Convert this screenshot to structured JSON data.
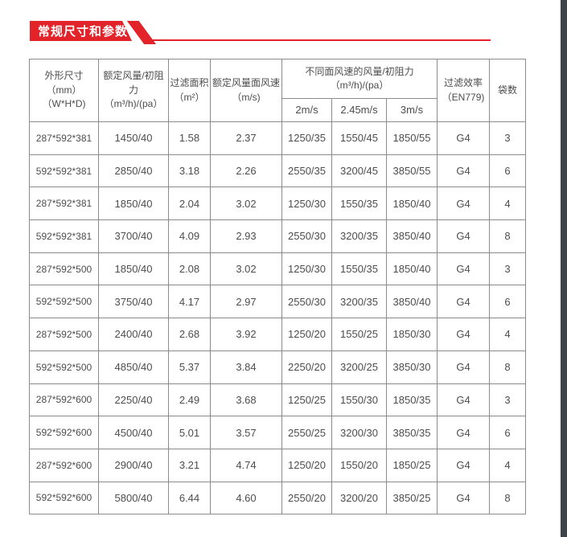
{
  "page": {
    "accent_red": "#e2232a",
    "side_strip_color": "#3f444a",
    "background": "#ffffff"
  },
  "banner": {
    "title": "常规尺寸和参数"
  },
  "table": {
    "headers": {
      "col_dimensions": {
        "line1": "外形尺寸（mm）",
        "line2": "（W*H*D)"
      },
      "col_rated_flow": {
        "line1": "额定风量/初阻力",
        "line2": "（m³/h)/(pa）"
      },
      "col_filter_area": {
        "line1": "过滤面积",
        "line2": "（m²）"
      },
      "col_face_velocity": {
        "line1": "额定风量面风速",
        "line2": "（m/s)"
      },
      "col_group_flows": {
        "line1": "不同面风速的风量/初阻力",
        "line2": "（m³/h)/(pa）"
      },
      "sub_speeds": [
        "2m/s",
        "2.45m/s",
        "3m/s"
      ],
      "col_efficiency": {
        "line1": "过滤效率",
        "line2": "（EN779)"
      },
      "col_bags": "袋数"
    },
    "rows": [
      [
        "287*592*381",
        "1450/40",
        "1.58",
        "2.37",
        "1250/35",
        "1550/45",
        "1850/55",
        "G4",
        "3"
      ],
      [
        "592*592*381",
        "2850/40",
        "3.18",
        "2.26",
        "2550/35",
        "3200/45",
        "3850/55",
        "G4",
        "6"
      ],
      [
        "287*592*381",
        "1850/40",
        "2.04",
        "3.02",
        "1250/30",
        "1550/35",
        "1850/40",
        "G4",
        "4"
      ],
      [
        "592*592*381",
        "3700/40",
        "4.09",
        "2.93",
        "2550/30",
        "3200/35",
        "3850/40",
        "G4",
        "8"
      ],
      [
        "287*592*500",
        "1850/40",
        "2.08",
        "3.02",
        "1250/30",
        "1550/35",
        "1850/40",
        "G4",
        "3"
      ],
      [
        "592*592*500",
        "3750/40",
        "4.17",
        "2.97",
        "2550/30",
        "3200/35",
        "3850/40",
        "G4",
        "6"
      ],
      [
        "287*592*500",
        "2400/40",
        "2.68",
        "3.92",
        "1250/20",
        "1550/25",
        "1850/30",
        "G4",
        "4"
      ],
      [
        "592*592*500",
        "4850/40",
        "5.37",
        "3.84",
        "2250/20",
        "3200/25",
        "3850/30",
        "G4",
        "8"
      ],
      [
        "287*592*600",
        "2250/40",
        "2.49",
        "3.68",
        "1250/25",
        "1550/30",
        "1850/35",
        "G4",
        "3"
      ],
      [
        "592*592*600",
        "4500/40",
        "5.01",
        "3.57",
        "2550/25",
        "3200/30",
        "3850/35",
        "G4",
        "6"
      ],
      [
        "287*592*600",
        "2900/40",
        "3.21",
        "4.74",
        "1250/20",
        "1550/20",
        "1850/25",
        "G4",
        "4"
      ],
      [
        "592*592*600",
        "5800/40",
        "6.44",
        "4.60",
        "2550/20",
        "3200/20",
        "3850/25",
        "G4",
        "8"
      ]
    ]
  }
}
